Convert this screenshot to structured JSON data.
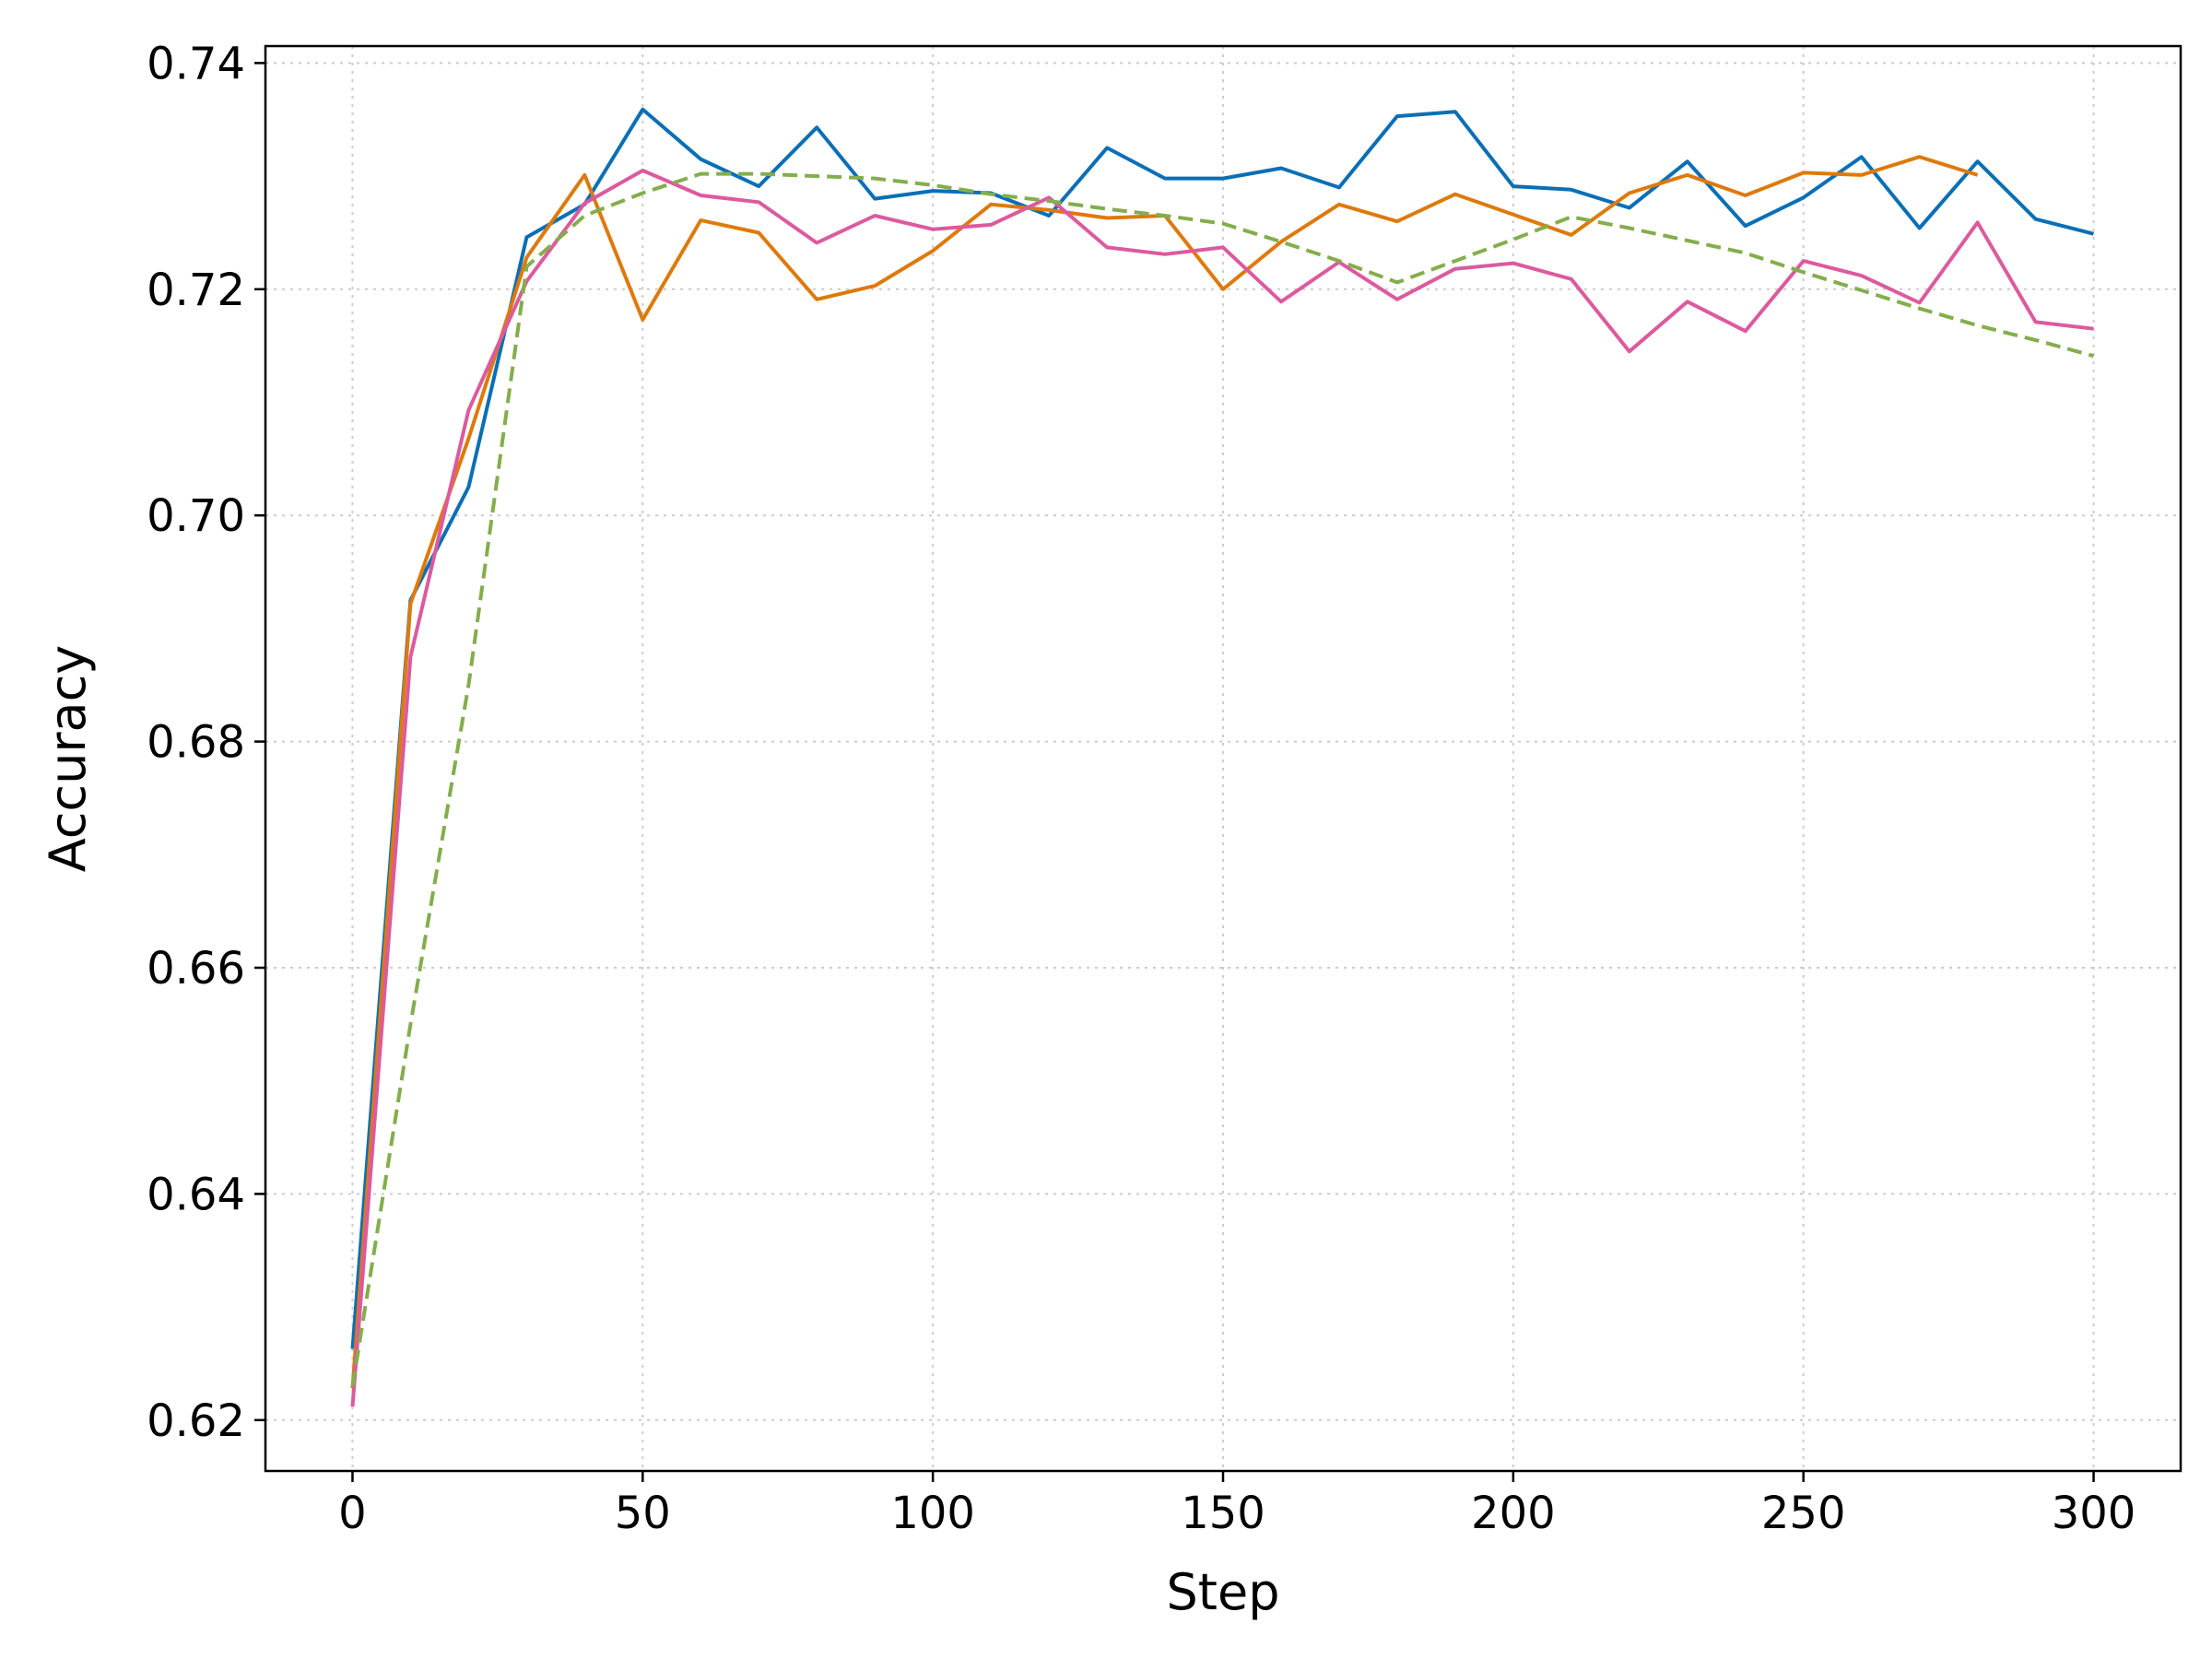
{
  "chart_data": {
    "type": "line",
    "title": "",
    "xlabel": "Step",
    "ylabel": "Accuracy",
    "xlim": [
      -15,
      315
    ],
    "ylim": [
      0.6155,
      0.7415
    ],
    "xticks": [
      0,
      50,
      100,
      150,
      200,
      250,
      300
    ],
    "yticks": [
      0.62,
      0.64,
      0.66,
      0.68,
      0.7,
      0.72,
      0.74
    ],
    "xtick_labels": [
      "0",
      "50",
      "100",
      "150",
      "200",
      "250",
      "300"
    ],
    "ytick_labels": [
      "0.62",
      "0.64",
      "0.66",
      "0.68",
      "0.70",
      "0.72",
      "0.74"
    ],
    "grid": true,
    "legend": "none",
    "series": [
      {
        "color": "#0a6fb5",
        "style": "solid",
        "x": [
          0,
          10,
          20,
          30,
          40,
          50,
          60,
          70,
          80,
          90,
          100,
          110,
          120,
          130,
          140,
          150,
          160,
          170,
          180,
          190,
          200,
          210,
          220,
          230,
          240,
          250,
          260,
          270,
          280,
          290,
          300
        ],
        "y": [
          0.6263,
          0.6925,
          0.7025,
          0.7246,
          0.7275,
          0.7359,
          0.7315,
          0.7291,
          0.7343,
          0.728,
          0.7287,
          0.7285,
          0.7265,
          0.7325,
          0.7298,
          0.7298,
          0.7307,
          0.729,
          0.7353,
          0.7357,
          0.7291,
          0.7288,
          0.7272,
          0.7313,
          0.7256,
          0.7281,
          0.7317,
          0.7254,
          0.7313,
          0.7262,
          0.7249
        ]
      },
      {
        "color": "#dd7a0d",
        "style": "solid",
        "x": [
          0,
          10,
          20,
          30,
          40,
          50,
          60,
          70,
          80,
          90,
          100,
          110,
          120,
          130,
          140,
          150,
          160,
          170,
          180,
          190,
          200,
          210,
          220,
          230,
          240,
          250,
          260,
          270,
          280
        ],
        "y": [
          0.6228,
          0.6922,
          0.7068,
          0.7228,
          0.7301,
          0.7173,
          0.7261,
          0.725,
          0.7191,
          0.7203,
          0.7234,
          0.7275,
          0.727,
          0.7263,
          0.7265,
          0.72,
          0.7242,
          0.7275,
          0.726,
          0.7284,
          0.7266,
          0.7248,
          0.7285,
          0.7301,
          0.7283,
          0.7303,
          0.7301,
          0.7317,
          0.7301
        ]
      },
      {
        "color": "#dc5a9e",
        "style": "solid",
        "x": [
          0,
          10,
          20,
          30,
          40,
          50,
          60,
          70,
          80,
          90,
          100,
          110,
          120,
          130,
          140,
          150,
          160,
          170,
          180,
          190,
          200,
          210,
          220,
          230,
          240,
          250,
          260,
          270,
          280,
          290,
          300
        ],
        "y": [
          0.6212,
          0.6875,
          0.7093,
          0.7207,
          0.7276,
          0.7305,
          0.7283,
          0.7277,
          0.7241,
          0.7265,
          0.7253,
          0.7257,
          0.7281,
          0.7237,
          0.7231,
          0.7237,
          0.7189,
          0.7224,
          0.7191,
          0.7218,
          0.7223,
          0.7209,
          0.7145,
          0.7189,
          0.7163,
          0.7225,
          0.7212,
          0.7188,
          0.7259,
          0.7171,
          0.7165
        ]
      },
      {
        "color": "#84ad4c",
        "style": "dashed",
        "x": [
          0,
          10,
          20,
          30,
          40,
          50,
          60,
          70,
          80,
          90,
          100,
          110,
          120,
          130,
          140,
          150,
          160,
          170,
          180,
          190,
          200,
          210,
          220,
          230,
          240,
          250,
          260,
          270,
          280,
          290,
          300
        ],
        "y": [
          0.623,
          0.655,
          0.685,
          0.722,
          0.7265,
          0.7285,
          0.7302,
          0.7302,
          0.73,
          0.7298,
          0.7292,
          0.7284,
          0.7278,
          0.7271,
          0.7265,
          0.7258,
          0.7242,
          0.7225,
          0.7206,
          0.7225,
          0.7244,
          0.7264,
          0.7254,
          0.7243,
          0.7232,
          0.7215,
          0.7199,
          0.7183,
          0.7168,
          0.7155,
          0.7141
        ]
      }
    ]
  }
}
